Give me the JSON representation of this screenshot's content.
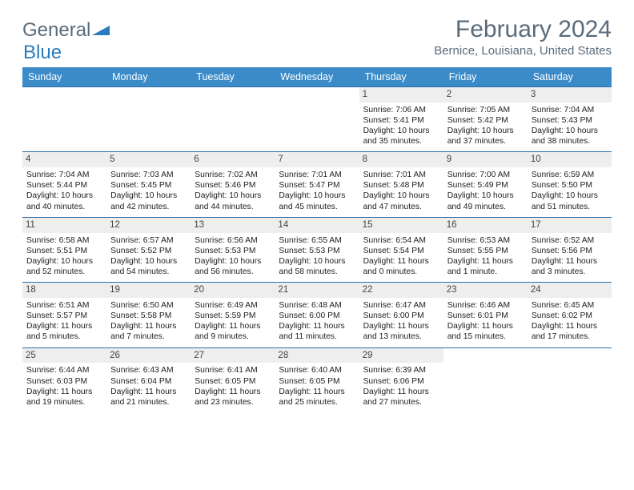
{
  "brand": {
    "part1": "General",
    "part2": "Blue"
  },
  "title": "February 2024",
  "location": "Bernice, Louisiana, United States",
  "colors": {
    "header_bg": "#3b8bc9",
    "week_border": "#2d6fa8",
    "daynum_bg": "#eeeeee",
    "text_muted": "#5a6b7b"
  },
  "day_labels": [
    "Sunday",
    "Monday",
    "Tuesday",
    "Wednesday",
    "Thursday",
    "Friday",
    "Saturday"
  ],
  "weeks": [
    [
      {
        "n": "",
        "empty": true
      },
      {
        "n": "",
        "empty": true
      },
      {
        "n": "",
        "empty": true
      },
      {
        "n": "",
        "empty": true
      },
      {
        "n": "1",
        "sr": "Sunrise: 7:06 AM",
        "ss": "Sunset: 5:41 PM",
        "dl": "Daylight: 10 hours and 35 minutes."
      },
      {
        "n": "2",
        "sr": "Sunrise: 7:05 AM",
        "ss": "Sunset: 5:42 PM",
        "dl": "Daylight: 10 hours and 37 minutes."
      },
      {
        "n": "3",
        "sr": "Sunrise: 7:04 AM",
        "ss": "Sunset: 5:43 PM",
        "dl": "Daylight: 10 hours and 38 minutes."
      }
    ],
    [
      {
        "n": "4",
        "sr": "Sunrise: 7:04 AM",
        "ss": "Sunset: 5:44 PM",
        "dl": "Daylight: 10 hours and 40 minutes."
      },
      {
        "n": "5",
        "sr": "Sunrise: 7:03 AM",
        "ss": "Sunset: 5:45 PM",
        "dl": "Daylight: 10 hours and 42 minutes."
      },
      {
        "n": "6",
        "sr": "Sunrise: 7:02 AM",
        "ss": "Sunset: 5:46 PM",
        "dl": "Daylight: 10 hours and 44 minutes."
      },
      {
        "n": "7",
        "sr": "Sunrise: 7:01 AM",
        "ss": "Sunset: 5:47 PM",
        "dl": "Daylight: 10 hours and 45 minutes."
      },
      {
        "n": "8",
        "sr": "Sunrise: 7:01 AM",
        "ss": "Sunset: 5:48 PM",
        "dl": "Daylight: 10 hours and 47 minutes."
      },
      {
        "n": "9",
        "sr": "Sunrise: 7:00 AM",
        "ss": "Sunset: 5:49 PM",
        "dl": "Daylight: 10 hours and 49 minutes."
      },
      {
        "n": "10",
        "sr": "Sunrise: 6:59 AM",
        "ss": "Sunset: 5:50 PM",
        "dl": "Daylight: 10 hours and 51 minutes."
      }
    ],
    [
      {
        "n": "11",
        "sr": "Sunrise: 6:58 AM",
        "ss": "Sunset: 5:51 PM",
        "dl": "Daylight: 10 hours and 52 minutes."
      },
      {
        "n": "12",
        "sr": "Sunrise: 6:57 AM",
        "ss": "Sunset: 5:52 PM",
        "dl": "Daylight: 10 hours and 54 minutes."
      },
      {
        "n": "13",
        "sr": "Sunrise: 6:56 AM",
        "ss": "Sunset: 5:53 PM",
        "dl": "Daylight: 10 hours and 56 minutes."
      },
      {
        "n": "14",
        "sr": "Sunrise: 6:55 AM",
        "ss": "Sunset: 5:53 PM",
        "dl": "Daylight: 10 hours and 58 minutes."
      },
      {
        "n": "15",
        "sr": "Sunrise: 6:54 AM",
        "ss": "Sunset: 5:54 PM",
        "dl": "Daylight: 11 hours and 0 minutes."
      },
      {
        "n": "16",
        "sr": "Sunrise: 6:53 AM",
        "ss": "Sunset: 5:55 PM",
        "dl": "Daylight: 11 hours and 1 minute."
      },
      {
        "n": "17",
        "sr": "Sunrise: 6:52 AM",
        "ss": "Sunset: 5:56 PM",
        "dl": "Daylight: 11 hours and 3 minutes."
      }
    ],
    [
      {
        "n": "18",
        "sr": "Sunrise: 6:51 AM",
        "ss": "Sunset: 5:57 PM",
        "dl": "Daylight: 11 hours and 5 minutes."
      },
      {
        "n": "19",
        "sr": "Sunrise: 6:50 AM",
        "ss": "Sunset: 5:58 PM",
        "dl": "Daylight: 11 hours and 7 minutes."
      },
      {
        "n": "20",
        "sr": "Sunrise: 6:49 AM",
        "ss": "Sunset: 5:59 PM",
        "dl": "Daylight: 11 hours and 9 minutes."
      },
      {
        "n": "21",
        "sr": "Sunrise: 6:48 AM",
        "ss": "Sunset: 6:00 PM",
        "dl": "Daylight: 11 hours and 11 minutes."
      },
      {
        "n": "22",
        "sr": "Sunrise: 6:47 AM",
        "ss": "Sunset: 6:00 PM",
        "dl": "Daylight: 11 hours and 13 minutes."
      },
      {
        "n": "23",
        "sr": "Sunrise: 6:46 AM",
        "ss": "Sunset: 6:01 PM",
        "dl": "Daylight: 11 hours and 15 minutes."
      },
      {
        "n": "24",
        "sr": "Sunrise: 6:45 AM",
        "ss": "Sunset: 6:02 PM",
        "dl": "Daylight: 11 hours and 17 minutes."
      }
    ],
    [
      {
        "n": "25",
        "sr": "Sunrise: 6:44 AM",
        "ss": "Sunset: 6:03 PM",
        "dl": "Daylight: 11 hours and 19 minutes."
      },
      {
        "n": "26",
        "sr": "Sunrise: 6:43 AM",
        "ss": "Sunset: 6:04 PM",
        "dl": "Daylight: 11 hours and 21 minutes."
      },
      {
        "n": "27",
        "sr": "Sunrise: 6:41 AM",
        "ss": "Sunset: 6:05 PM",
        "dl": "Daylight: 11 hours and 23 minutes."
      },
      {
        "n": "28",
        "sr": "Sunrise: 6:40 AM",
        "ss": "Sunset: 6:05 PM",
        "dl": "Daylight: 11 hours and 25 minutes."
      },
      {
        "n": "29",
        "sr": "Sunrise: 6:39 AM",
        "ss": "Sunset: 6:06 PM",
        "dl": "Daylight: 11 hours and 27 minutes."
      },
      {
        "n": "",
        "empty": true
      },
      {
        "n": "",
        "empty": true
      }
    ]
  ]
}
